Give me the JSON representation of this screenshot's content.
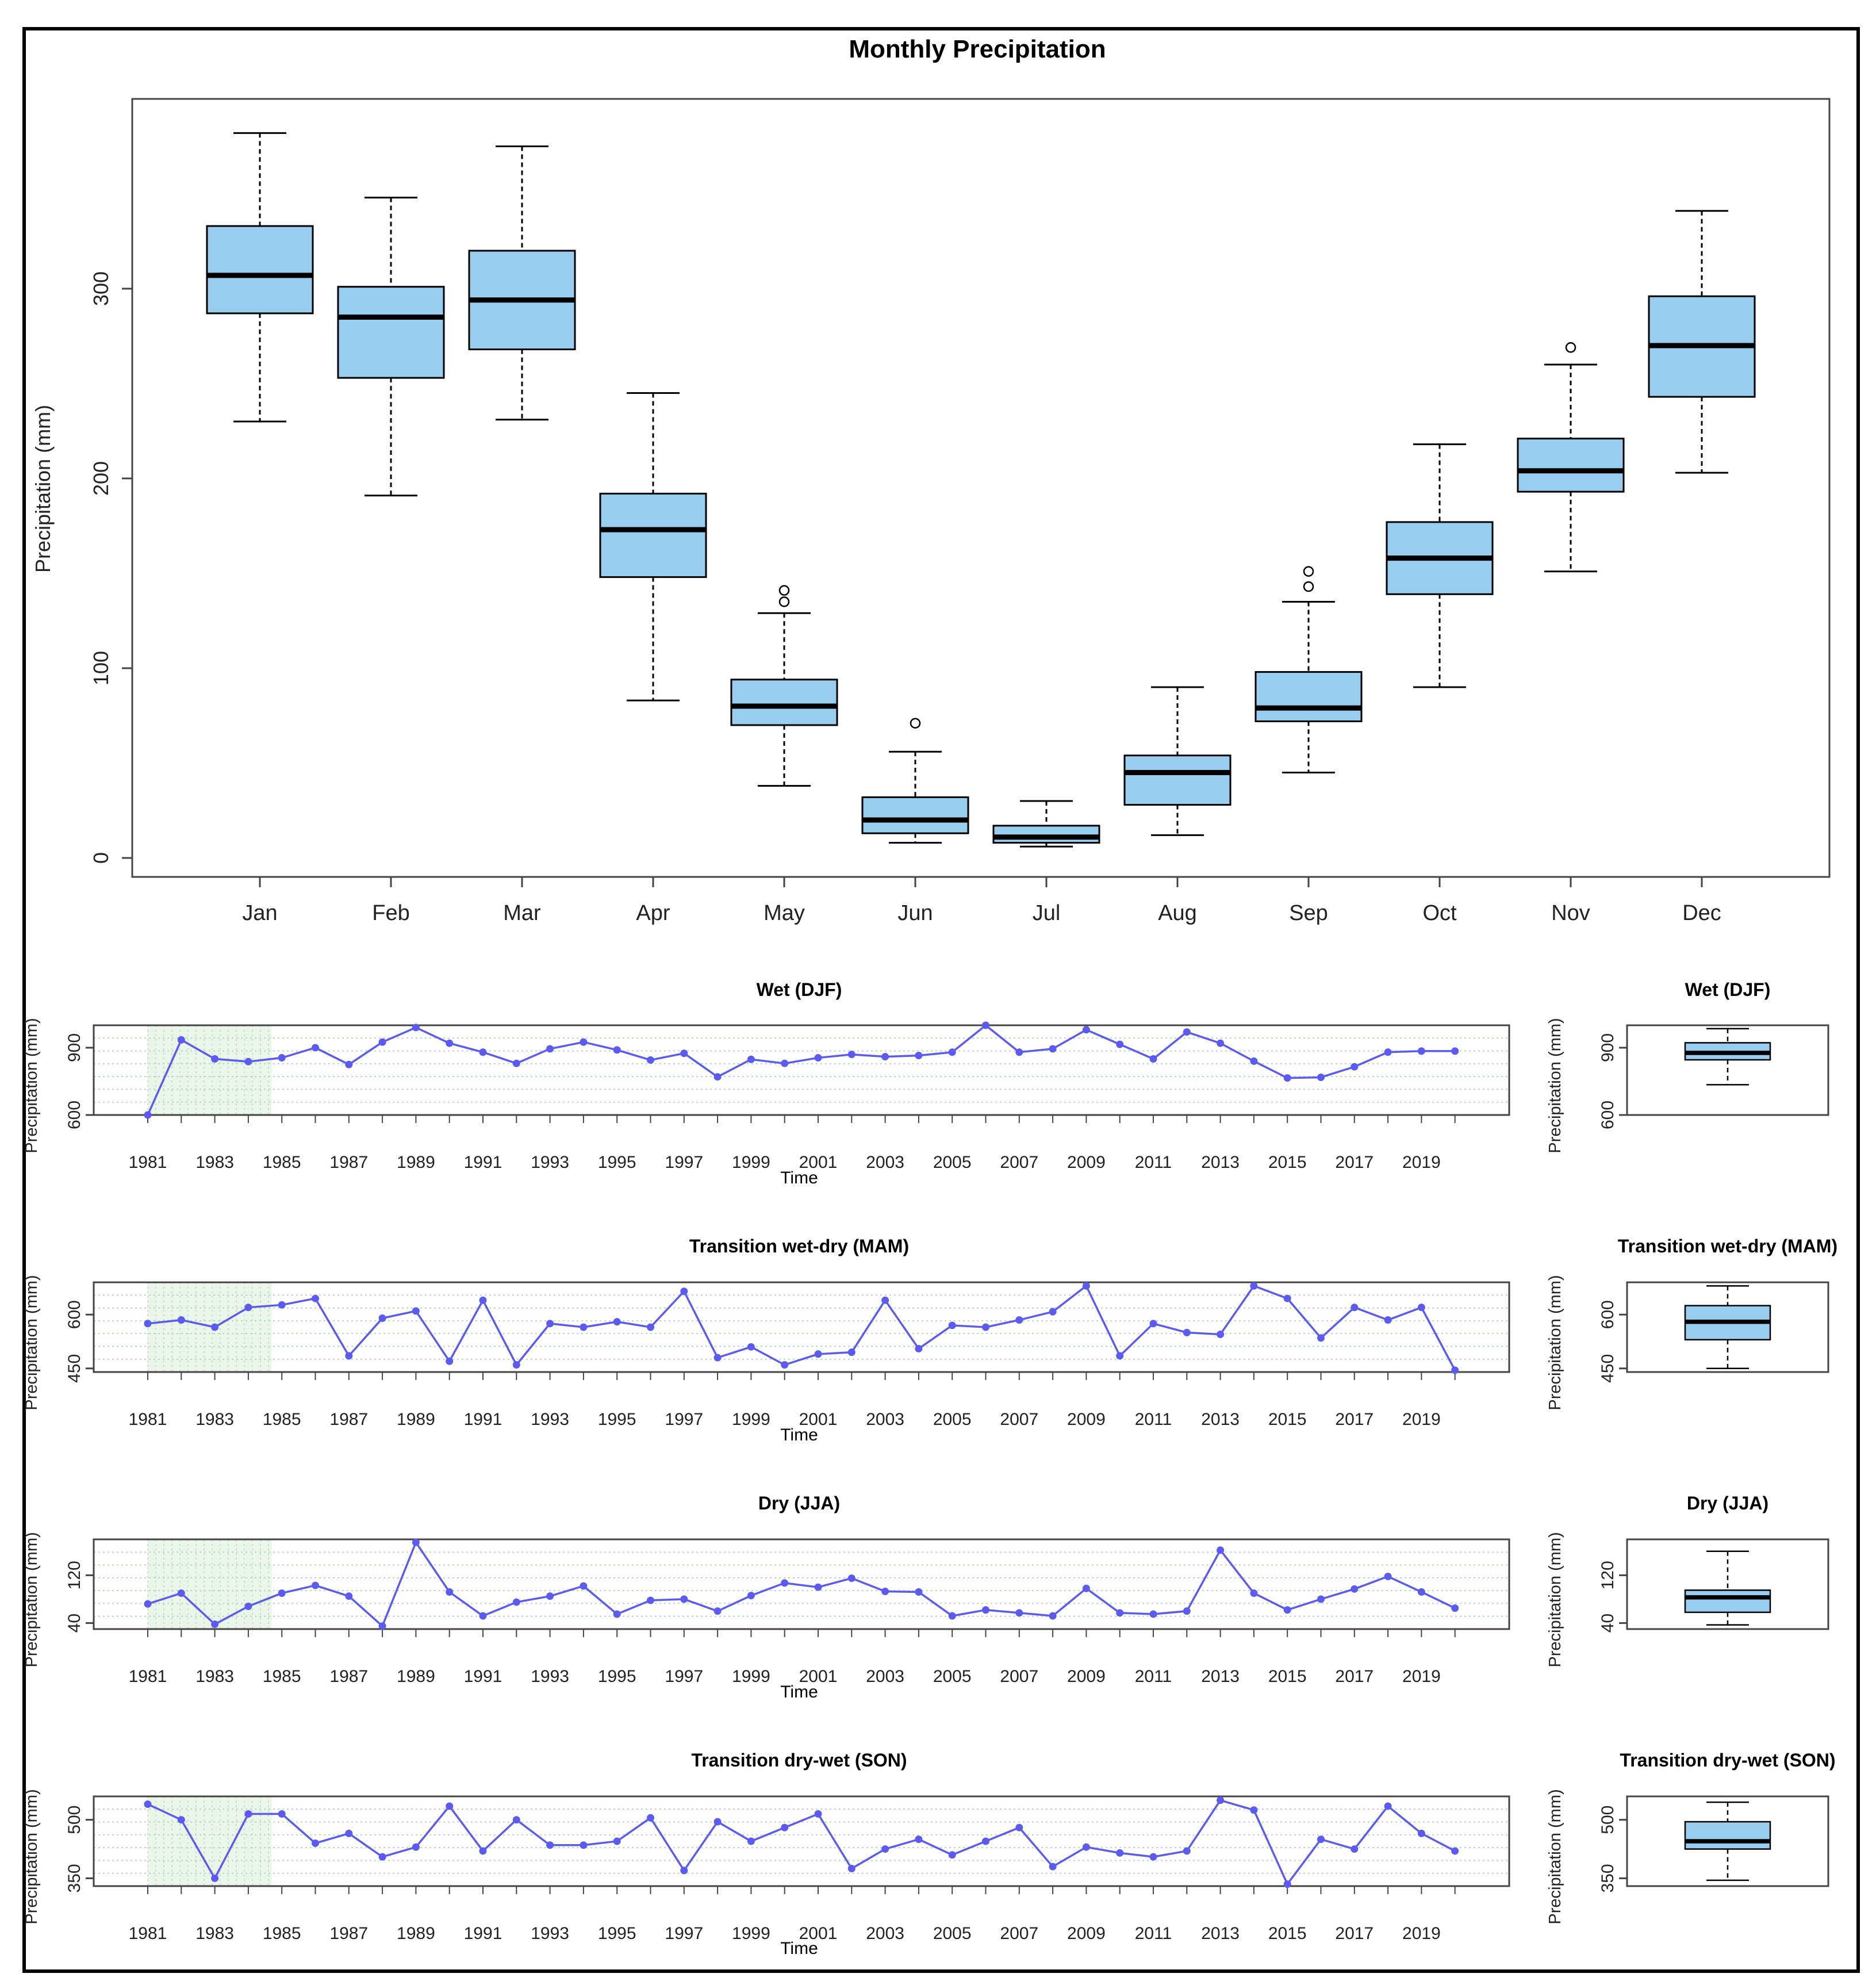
{
  "chart_data": [
    {
      "id": "monthly",
      "type": "boxplot",
      "title": "Monthly Precipitation",
      "ylabel": "Precipitation (mm)",
      "xlabel": "",
      "ylim": [
        -10,
        400
      ],
      "yticks": [
        0,
        100,
        200,
        300
      ],
      "categories": [
        "Jan",
        "Feb",
        "Mar",
        "Apr",
        "May",
        "Jun",
        "Jul",
        "Aug",
        "Sep",
        "Oct",
        "Nov",
        "Dec"
      ],
      "boxes": [
        {
          "min": 230,
          "q1": 287,
          "median": 307,
          "q3": 333,
          "max": 382,
          "outliers": []
        },
        {
          "min": 191,
          "q1": 253,
          "median": 285,
          "q3": 301,
          "max": 348,
          "outliers": []
        },
        {
          "min": 231,
          "q1": 268,
          "median": 294,
          "q3": 320,
          "max": 375,
          "outliers": []
        },
        {
          "min": 83,
          "q1": 148,
          "median": 173,
          "q3": 192,
          "max": 245,
          "outliers": []
        },
        {
          "min": 38,
          "q1": 70,
          "median": 80,
          "q3": 94,
          "max": 129,
          "outliers": [
            135,
            141
          ]
        },
        {
          "min": 8,
          "q1": 13,
          "median": 20,
          "q3": 32,
          "max": 56,
          "outliers": [
            71
          ]
        },
        {
          "min": 6,
          "q1": 8,
          "median": 11,
          "q3": 17,
          "max": 30,
          "outliers": []
        },
        {
          "min": 12,
          "q1": 28,
          "median": 45,
          "q3": 54,
          "max": 90,
          "outliers": []
        },
        {
          "min": 45,
          "q1": 72,
          "median": 79,
          "q3": 98,
          "max": 135,
          "outliers": [
            143,
            151
          ]
        },
        {
          "min": 90,
          "q1": 139,
          "median": 158,
          "q3": 177,
          "max": 218,
          "outliers": []
        },
        {
          "min": 151,
          "q1": 193,
          "median": 204,
          "q3": 221,
          "max": 260,
          "outliers": [
            269
          ]
        },
        {
          "min": 203,
          "q1": 243,
          "median": 270,
          "q3": 296,
          "max": 341,
          "outliers": []
        }
      ],
      "box_color": "#99cdef"
    },
    {
      "id": "djf",
      "type": "line",
      "title": "Wet (DJF)",
      "xlabel": "Time",
      "ylabel": "Precipitation (mm)",
      "years": [
        1981,
        1982,
        1983,
        1984,
        1985,
        1986,
        1987,
        1988,
        1989,
        1990,
        1991,
        1992,
        1993,
        1994,
        1995,
        1996,
        1997,
        1998,
        1999,
        2000,
        2001,
        2002,
        2003,
        2004,
        2005,
        2006,
        2007,
        2008,
        2009,
        2010,
        2011,
        2012,
        2013,
        2014,
        2015,
        2016,
        2017,
        2018,
        2019,
        2020
      ],
      "values": [
        600,
        935,
        850,
        838,
        855,
        900,
        825,
        925,
        990,
        920,
        880,
        830,
        895,
        925,
        890,
        845,
        875,
        770,
        848,
        830,
        855,
        870,
        860,
        865,
        880,
        1000,
        880,
        895,
        980,
        915,
        850,
        970,
        920,
        840,
        765,
        768,
        815,
        880,
        885,
        885
      ],
      "ylim": [
        600,
        1000
      ],
      "yticks": [
        600,
        900
      ],
      "xticks": [
        1981,
        1983,
        1985,
        1987,
        1989,
        1991,
        1993,
        1995,
        1997,
        1999,
        2001,
        2003,
        2005,
        2007,
        2009,
        2011,
        2013,
        2015,
        2017,
        2019
      ],
      "box": {
        "min": 735,
        "q1": 846,
        "median": 877,
        "q3": 922,
        "max": 985,
        "outliers": []
      }
    },
    {
      "id": "mam",
      "type": "line",
      "title": "Transition wet-dry (MAM)",
      "xlabel": "Time",
      "ylabel": "Precipitation (mm)",
      "years": [
        1981,
        1982,
        1983,
        1984,
        1985,
        1986,
        1987,
        1988,
        1989,
        1990,
        1991,
        1992,
        1993,
        1994,
        1995,
        1996,
        1997,
        1998,
        1999,
        2000,
        2001,
        2002,
        2003,
        2004,
        2005,
        2006,
        2007,
        2008,
        2009,
        2010,
        2011,
        2012,
        2013,
        2014,
        2015,
        2016,
        2017,
        2018,
        2019,
        2020
      ],
      "values": [
        575,
        585,
        565,
        620,
        627,
        645,
        485,
        590,
        610,
        470,
        640,
        460,
        575,
        565,
        580,
        565,
        665,
        480,
        510,
        460,
        490,
        495,
        640,
        505,
        570,
        565,
        585,
        608,
        680,
        485,
        575,
        550,
        545,
        680,
        645,
        535,
        620,
        585,
        620,
        445
      ],
      "ylim": [
        440,
        690
      ],
      "yticks": [
        450,
        600
      ],
      "xticks": [
        1981,
        1983,
        1985,
        1987,
        1989,
        1991,
        1993,
        1995,
        1997,
        1999,
        2001,
        2003,
        2005,
        2007,
        2009,
        2011,
        2013,
        2015,
        2017,
        2019
      ],
      "box": {
        "min": 450,
        "q1": 530,
        "median": 580,
        "q3": 625,
        "max": 680,
        "outliers": []
      }
    },
    {
      "id": "jja",
      "type": "line",
      "title": "Dry (JJA)",
      "xlabel": "Time",
      "ylabel": "Precipitation (mm)",
      "years": [
        1981,
        1982,
        1983,
        1984,
        1985,
        1986,
        1987,
        1988,
        1989,
        1990,
        1991,
        1992,
        1993,
        1994,
        1995,
        1996,
        1997,
        1998,
        1999,
        2000,
        2001,
        2002,
        2003,
        2004,
        2005,
        2006,
        2007,
        2008,
        2009,
        2010,
        2011,
        2012,
        2013,
        2014,
        2015,
        2016,
        2017,
        2018,
        2019,
        2020
      ],
      "values": [
        72,
        90,
        38,
        68,
        90,
        103,
        85,
        35,
        175,
        92,
        52,
        75,
        85,
        102,
        55,
        78,
        80,
        60,
        86,
        107,
        100,
        115,
        93,
        92,
        52,
        62,
        57,
        52,
        98,
        57,
        55,
        60,
        162,
        90,
        62,
        80,
        97,
        118,
        92,
        65
      ],
      "ylim": [
        30,
        180
      ],
      "yticks": [
        40,
        120
      ],
      "xticks": [
        1981,
        1983,
        1985,
        1987,
        1989,
        1991,
        1993,
        1995,
        1997,
        1999,
        2001,
        2003,
        2005,
        2007,
        2009,
        2011,
        2013,
        2015,
        2017,
        2019
      ],
      "box": {
        "min": 37,
        "q1": 58,
        "median": 83,
        "q3": 95,
        "max": 160,
        "outliers": []
      }
    },
    {
      "id": "son",
      "type": "line",
      "title": "Transition dry-wet (SON)",
      "xlabel": "Time",
      "ylabel": "Precipitation (mm)",
      "years": [
        1981,
        1982,
        1983,
        1984,
        1985,
        1986,
        1987,
        1988,
        1989,
        1990,
        1991,
        1992,
        1993,
        1994,
        1995,
        1996,
        1997,
        1998,
        1999,
        2000,
        2001,
        2002,
        2003,
        2004,
        2005,
        2006,
        2007,
        2008,
        2009,
        2010,
        2011,
        2012,
        2013,
        2014,
        2015,
        2016,
        2017,
        2018,
        2019,
        2020
      ],
      "values": [
        540,
        500,
        350,
        515,
        515,
        440,
        465,
        405,
        430,
        535,
        420,
        500,
        435,
        435,
        445,
        505,
        370,
        495,
        445,
        480,
        515,
        375,
        425,
        450,
        410,
        445,
        480,
        380,
        430,
        415,
        405,
        420,
        550,
        525,
        335,
        450,
        425,
        535,
        465,
        420
      ],
      "ylim": [
        330,
        560
      ],
      "yticks": [
        350,
        500
      ],
      "xticks": [
        1981,
        1983,
        1985,
        1987,
        1989,
        1991,
        1993,
        1995,
        1997,
        1999,
        2001,
        2003,
        2005,
        2007,
        2009,
        2011,
        2013,
        2015,
        2017,
        2019
      ],
      "box": {
        "min": 345,
        "q1": 425,
        "median": 445,
        "q3": 495,
        "max": 545,
        "outliers": []
      }
    }
  ],
  "colors": {
    "box_fill": "#99cdef",
    "line": "#5b5bef",
    "grid": "#b7d9b7",
    "shade": "#eaf6ea"
  }
}
